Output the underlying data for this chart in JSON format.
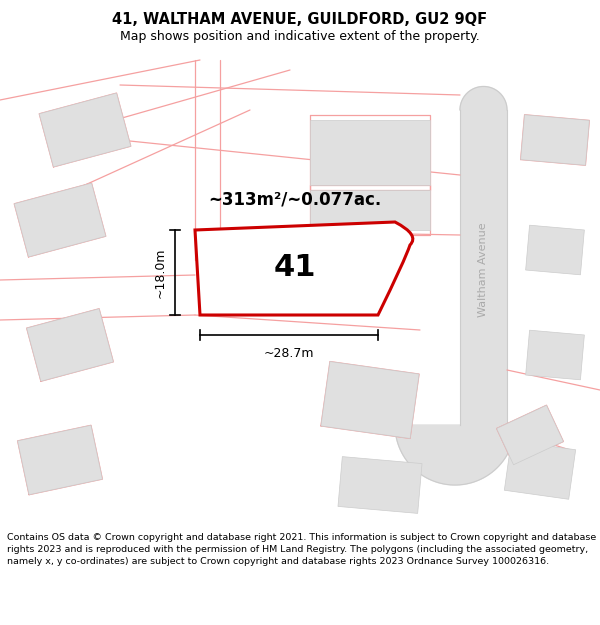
{
  "title": "41, WALTHAM AVENUE, GUILDFORD, GU2 9QF",
  "subtitle": "Map shows position and indicative extent of the property.",
  "footer": "Contains OS data © Crown copyright and database right 2021. This information is subject to Crown copyright and database rights 2023 and is reproduced with the permission of HM Land Registry. The polygons (including the associated geometry, namely x, y co-ordinates) are subject to Crown copyright and database rights 2023 Ordnance Survey 100026316.",
  "area_label": "~313m²/~0.077ac.",
  "plot_number": "41",
  "dim_width": "~28.7m",
  "dim_height": "~18.0m",
  "road_label": "Waltham Avenue",
  "bg_color": "#ffffff",
  "plot_fill": "#ffffff",
  "plot_edge": "#cc0000",
  "bnd_color": "#f5a0a0",
  "road_fill": "#e0e0e0",
  "road_edge": "#cccccc",
  "building_fill": "#e0e0e0",
  "building_edge": "#cccccc",
  "map_bg": "#f8f8f8"
}
